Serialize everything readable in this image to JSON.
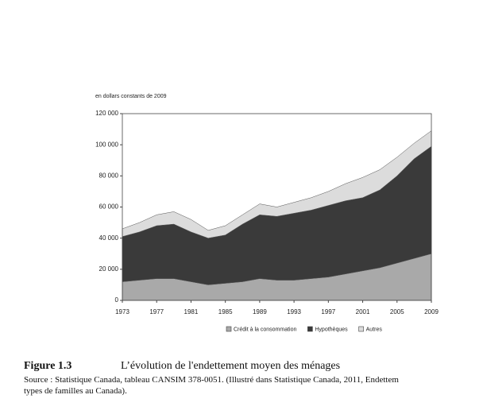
{
  "chart_data": {
    "type": "stacked-area",
    "y_unit_label": "en dollars constants de 2009",
    "x": [
      1973,
      1975,
      1977,
      1979,
      1981,
      1983,
      1985,
      1987,
      1989,
      1991,
      1993,
      1995,
      1997,
      1999,
      2001,
      2003,
      2005,
      2007,
      2009
    ],
    "series": [
      {
        "name": "Crédit à la consommation",
        "color": "#a9a9a9",
        "values": [
          12000,
          13000,
          14000,
          14000,
          12000,
          10000,
          11000,
          12000,
          14000,
          13000,
          13000,
          14000,
          15000,
          17000,
          19000,
          21000,
          24000,
          27000,
          30000
        ]
      },
      {
        "name": "Hypothèques",
        "color": "#3a3a3a",
        "values": [
          29000,
          31000,
          34000,
          35000,
          32000,
          30000,
          31000,
          37000,
          41000,
          41000,
          43000,
          44000,
          46000,
          47000,
          47000,
          50000,
          56000,
          64000,
          69000
        ]
      },
      {
        "name": "Autres",
        "color": "#dcdcdc",
        "values": [
          5000,
          6000,
          7000,
          8000,
          8000,
          5000,
          6000,
          6000,
          7000,
          6000,
          7000,
          8000,
          9000,
          11000,
          13000,
          13000,
          12000,
          10000,
          10000
        ]
      }
    ],
    "xlim": [
      1973,
      2009
    ],
    "xticks": [
      1973,
      1977,
      1981,
      1985,
      1989,
      1993,
      1997,
      2001,
      2005,
      2009
    ],
    "ylim": [
      0,
      120000
    ],
    "yticks": [
      0,
      {
        "value": 20000,
        "label": "20 000"
      },
      {
        "value": 40000,
        "label": "40 000"
      },
      {
        "value": 60000,
        "label": "60 000"
      },
      {
        "value": 80000,
        "label": "80 000"
      },
      {
        "value": 100000,
        "label": "100 000"
      },
      {
        "value": 120000,
        "label": "120 000"
      }
    ]
  },
  "caption": {
    "number": "Figure 1.3",
    "title": "L’évolution de l'endettement moyen des ménages",
    "source": [
      "Source : Statistique Canada, tableau CANSIM 378-0051. (Illustré dans Statistique Canada, 2011, Endettem",
      "types de familles au Canada)."
    ]
  }
}
